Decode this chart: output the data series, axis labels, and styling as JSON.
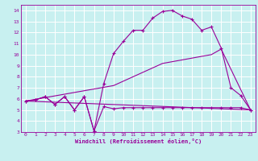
{
  "xlabel": "Windchill (Refroidissement éolien,°C)",
  "bg_color": "#c8f0f0",
  "grid_color": "#ffffff",
  "line_color": "#990099",
  "xlim": [
    -0.5,
    23.5
  ],
  "ylim": [
    3,
    14.5
  ],
  "xticks": [
    0,
    1,
    2,
    3,
    4,
    5,
    6,
    7,
    8,
    9,
    10,
    11,
    12,
    13,
    14,
    15,
    16,
    17,
    18,
    19,
    20,
    21,
    22,
    23
  ],
  "yticks": [
    3,
    4,
    5,
    6,
    7,
    8,
    9,
    10,
    11,
    12,
    13,
    14
  ],
  "curve1_x": [
    0,
    1,
    2,
    3,
    4,
    5,
    6,
    7,
    8,
    9,
    10,
    11,
    12,
    13,
    14,
    15,
    16,
    17,
    18,
    19,
    20,
    21,
    22,
    23
  ],
  "curve1_y": [
    5.8,
    5.9,
    6.2,
    5.5,
    6.2,
    5.0,
    6.2,
    3.1,
    7.4,
    10.1,
    11.2,
    12.2,
    12.2,
    13.3,
    13.9,
    14.0,
    13.5,
    13.2,
    12.2,
    12.5,
    10.6,
    7.0,
    6.3,
    5.0
  ],
  "curve2_x": [
    0,
    1,
    2,
    3,
    4,
    5,
    6,
    7,
    8,
    9,
    10,
    11,
    12,
    13,
    14,
    15,
    16,
    17,
    18,
    19,
    20,
    21,
    22,
    23
  ],
  "curve2_y": [
    5.8,
    5.9,
    6.2,
    5.5,
    6.2,
    5.0,
    6.2,
    3.1,
    5.3,
    5.1,
    5.2,
    5.2,
    5.2,
    5.2,
    5.2,
    5.2,
    5.2,
    5.2,
    5.2,
    5.2,
    5.2,
    5.2,
    5.2,
    5.0
  ],
  "line3_x": [
    0,
    9,
    14,
    19,
    20,
    23
  ],
  "line3_y": [
    5.8,
    7.2,
    9.2,
    10.0,
    10.5,
    5.0
  ],
  "line4_x": [
    0,
    23
  ],
  "line4_y": [
    5.8,
    5.0
  ]
}
